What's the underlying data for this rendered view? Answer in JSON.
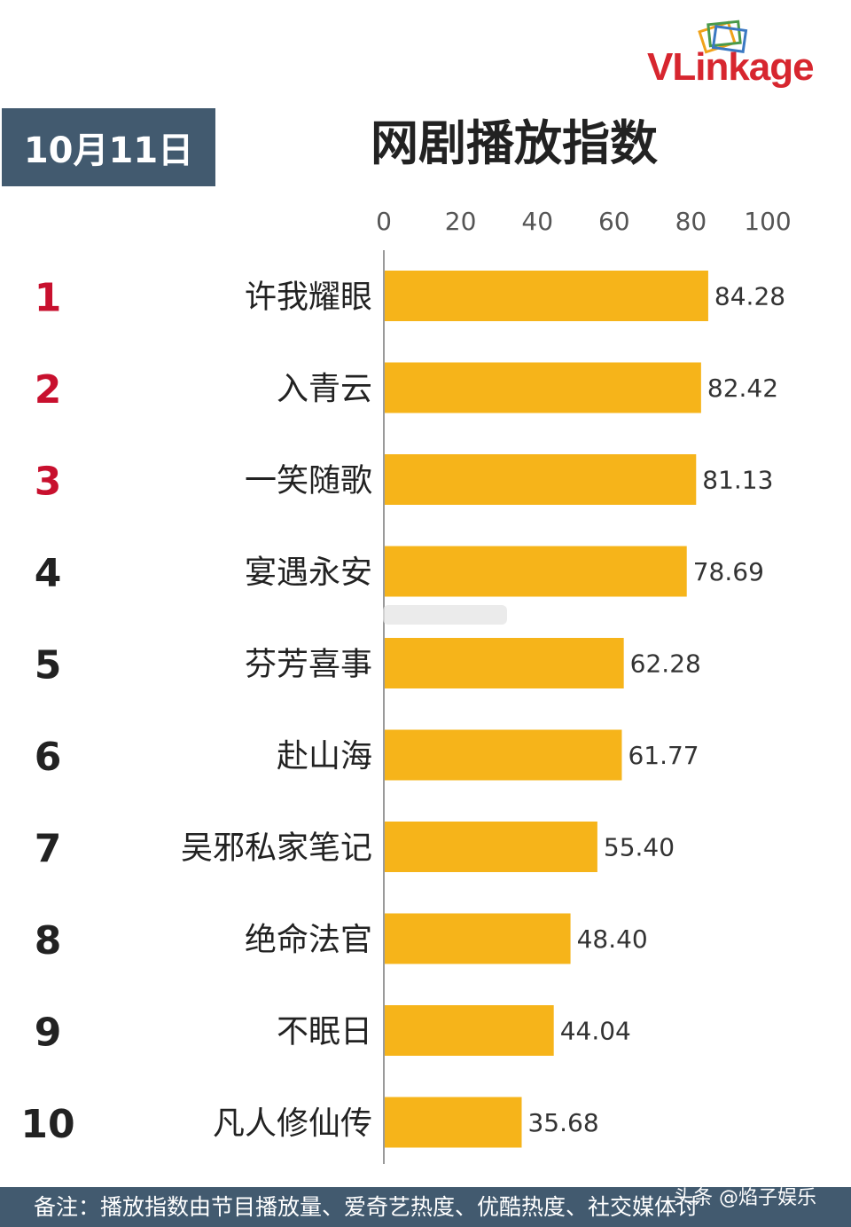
{
  "logo_text": "VLinkage",
  "date_label": "10月11日",
  "colors": {
    "bar": "#f6b41a",
    "rank_top": "#c8102e",
    "rank": "#222222",
    "header_bg": "#425a6f"
  },
  "chart_data": {
    "type": "bar",
    "orientation": "horizontal",
    "title": "网剧播放指数",
    "xlim": [
      0,
      100
    ],
    "x_ticks": [
      0,
      20,
      40,
      60,
      80,
      100
    ],
    "ranks": [
      "1",
      "2",
      "3",
      "4",
      "5",
      "6",
      "7",
      "8",
      "9",
      "10"
    ],
    "categories": [
      "许我耀眼",
      "入青云",
      "一笑随歌",
      "宴遇永安",
      "芬芳喜事",
      "赴山海",
      "吴邪私家笔记",
      "绝命法官",
      "不眠日",
      "凡人修仙传"
    ],
    "values": [
      84.28,
      82.42,
      81.13,
      78.69,
      62.28,
      61.77,
      55.4,
      48.4,
      44.04,
      35.68
    ],
    "value_labels": [
      "84.28",
      "82.42",
      "81.13",
      "78.69",
      "62.28",
      "61.77",
      "55.40",
      "48.40",
      "44.04",
      "35.68"
    ],
    "grid": false,
    "legend": "none"
  },
  "footer_note": "备注：播放指数由节目播放量、爱奇艺热度、优酷热度、社交媒体讨",
  "watermark": "头条 @焰子娱乐"
}
